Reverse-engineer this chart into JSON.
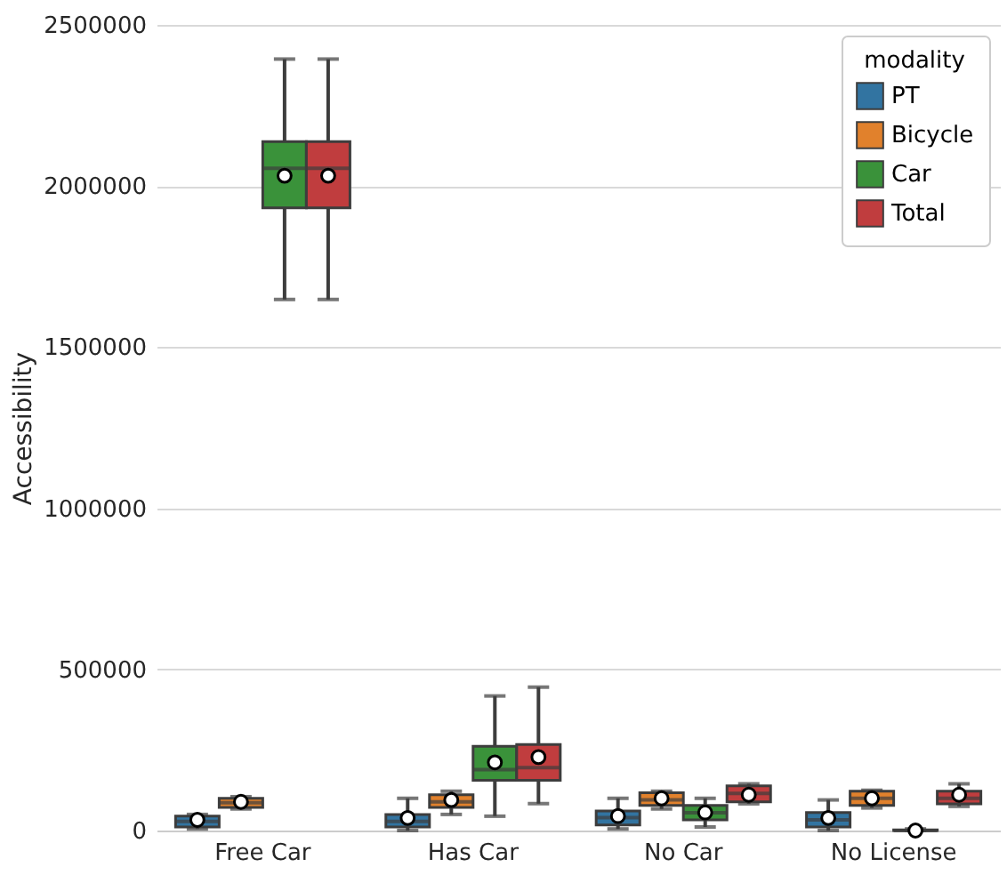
{
  "chart_data": {
    "type": "box",
    "ylabel": "Accessibility",
    "legend_title": "modality",
    "categories": [
      "Free Car",
      "Has Car",
      "No Car",
      "No License"
    ],
    "ylim": [
      0,
      2500000
    ],
    "yticks": [
      0,
      500000,
      1000000,
      1500000,
      2000000,
      2500000
    ],
    "grid": "y",
    "legend": "top right",
    "series": [
      {
        "name": "PT",
        "color": "#3274a1",
        "boxes": [
          {
            "low": 5000,
            "q1": 11000,
            "median": 28000,
            "q3": 45000,
            "high": 50000,
            "mean": 33000
          },
          {
            "low": 0,
            "q1": 11000,
            "median": 28000,
            "q3": 50000,
            "high": 100000,
            "mean": 39000
          },
          {
            "low": 5000,
            "q1": 17000,
            "median": 40000,
            "q3": 61000,
            "high": 100000,
            "mean": 45000
          },
          {
            "low": 0,
            "q1": 11000,
            "median": 33000,
            "q3": 56000,
            "high": 95000,
            "mean": 39000
          }
        ]
      },
      {
        "name": "Bicycle",
        "color": "#e1812c",
        "boxes": [
          {
            "low": 67000,
            "q1": 72000,
            "median": 86000,
            "q3": 100000,
            "high": 105000,
            "mean": 89000
          },
          {
            "low": 50000,
            "q1": 72000,
            "median": 89000,
            "q3": 111000,
            "high": 122000,
            "mean": 95000
          },
          {
            "low": 67000,
            "q1": 78000,
            "median": 95000,
            "q3": 117000,
            "high": 122000,
            "mean": 100000
          },
          {
            "low": 70000,
            "q1": 78000,
            "median": 100000,
            "q3": 122000,
            "high": 125000,
            "mean": 100000
          }
        ]
      },
      {
        "name": "Car",
        "color": "#3a923a",
        "boxes": [
          {
            "low": 1648000,
            "q1": 1932000,
            "median": 2055000,
            "q3": 2138000,
            "high": 2394000,
            "mean": 2032000
          },
          {
            "low": 44500,
            "q1": 156000,
            "median": 189000,
            "q3": 261700,
            "high": 417600,
            "mean": 211600
          },
          {
            "low": 11000,
            "q1": 33000,
            "median": 55000,
            "q3": 78000,
            "high": 100000,
            "mean": 56000
          },
          {
            "low": 0,
            "q1": 0,
            "median": 0,
            "q3": 2000,
            "high": 5000,
            "mean": 0
          }
        ]
      },
      {
        "name": "Total",
        "color": "#c03d3e",
        "boxes": [
          {
            "low": 1648000,
            "q1": 1932000,
            "median": 2055000,
            "q3": 2138000,
            "high": 2394000,
            "mean": 2032000
          },
          {
            "low": 83500,
            "q1": 156000,
            "median": 195000,
            "q3": 267000,
            "high": 445000,
            "mean": 228000
          },
          {
            "low": 83000,
            "q1": 89000,
            "median": 115000,
            "q3": 139000,
            "high": 145000,
            "mean": 111000
          },
          {
            "low": 75000,
            "q1": 83000,
            "median": 100000,
            "q3": 122000,
            "high": 145000,
            "mean": 111000
          }
        ]
      }
    ]
  }
}
